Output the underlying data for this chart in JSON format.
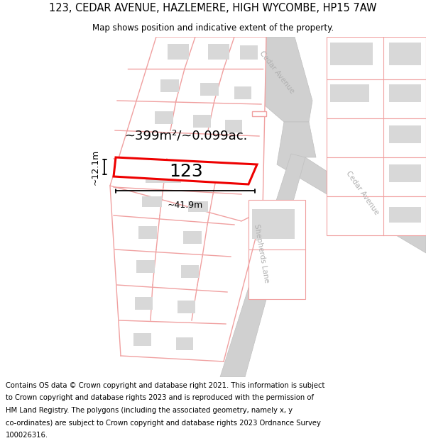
{
  "title_line1": "123, CEDAR AVENUE, HAZLEMERE, HIGH WYCOMBE, HP15 7AW",
  "title_line2": "Map shows position and indicative extent of the property.",
  "footer_lines": [
    "Contains OS data © Crown copyright and database right 2021. This information is subject",
    "to Crown copyright and database rights 2023 and is reproduced with the permission of",
    "HM Land Registry. The polygons (including the associated geometry, namely x, y",
    "co-ordinates) are subject to Crown copyright and database rights 2023 Ordnance Survey",
    "100026316."
  ],
  "area_text": "~399m²/~0.099ac.",
  "property_number": "123",
  "dim_width": "~41.9m",
  "dim_height": "~12.1m",
  "bg_color": "#ffffff",
  "map_bg": "#f8f8f8",
  "road_color": "#d0d0d0",
  "road_edge_color": "#c0c0c0",
  "plot_line_color": "#f0a0a0",
  "highlight_color": "#ee0000",
  "building_color": "#d8d8d8",
  "road_label_color": "#b0b0b0",
  "title_fontsize": 10.5,
  "subtitle_fontsize": 8.5,
  "footer_fontsize": 7.2,
  "area_fontsize": 13,
  "number_fontsize": 18,
  "dim_fontsize": 9
}
